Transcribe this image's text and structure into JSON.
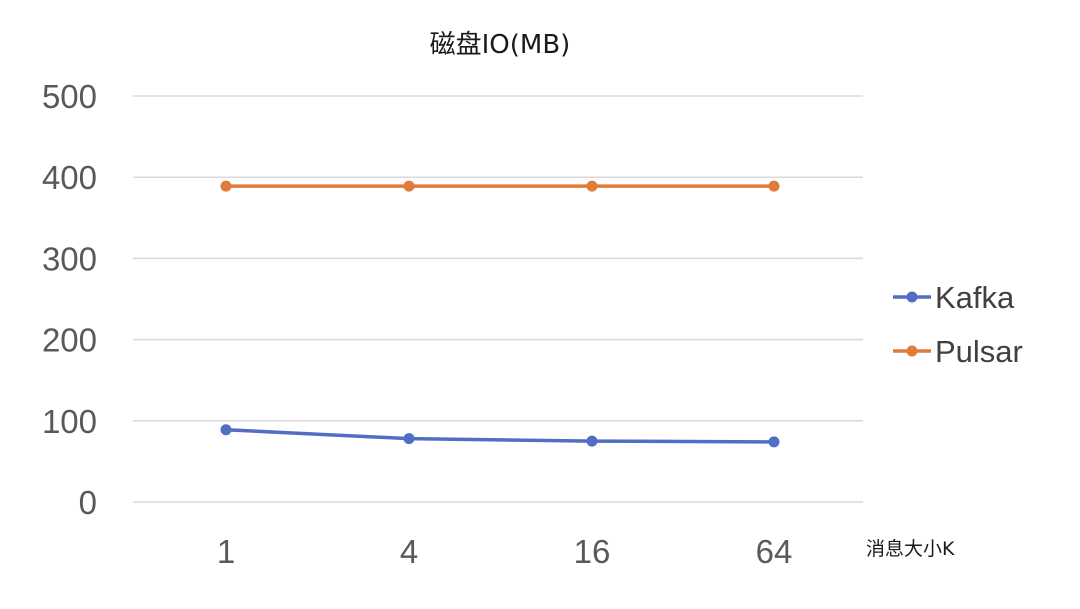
{
  "chart_data": {
    "type": "line",
    "title": "磁盘IO(MB)",
    "xlabel": "消息大小K",
    "ylabel": "",
    "categories": [
      "1",
      "4",
      "16",
      "64"
    ],
    "ylim": [
      0,
      500
    ],
    "yticks": [
      0,
      100,
      200,
      300,
      400,
      500
    ],
    "grid": true,
    "legend_position": "right",
    "series": [
      {
        "name": "Kafka",
        "color": "#4f6ec4",
        "values": [
          89,
          78,
          75,
          74
        ]
      },
      {
        "name": "Pulsar",
        "color": "#e07b39",
        "values": [
          389,
          389,
          389,
          389
        ]
      }
    ]
  }
}
